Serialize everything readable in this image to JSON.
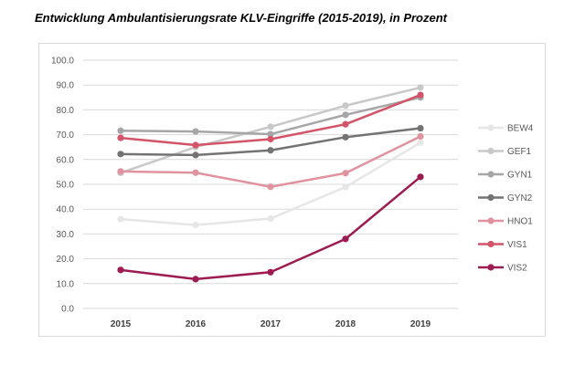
{
  "chart_data": {
    "type": "line",
    "title": "Entwicklung Ambulantisierungsrate KLV-Eingriffe (2015-2019), in Prozent",
    "xlabel": "",
    "ylabel": "",
    "categories": [
      "2015",
      "2016",
      "2017",
      "2018",
      "2019"
    ],
    "ylim": [
      0,
      100
    ],
    "yticks": [
      "0.0",
      "10.0",
      "20.0",
      "30.0",
      "40.0",
      "50.0",
      "60.0",
      "70.0",
      "80.0",
      "90.0",
      "100.0"
    ],
    "grid": true,
    "legend_position": "right",
    "series": [
      {
        "name": "BEW4",
        "color": "#e6e6e6",
        "values": [
          36.0,
          33.6,
          36.2,
          48.9,
          66.8
        ]
      },
      {
        "name": "GEF1",
        "color": "#c8c8c8",
        "values": [
          54.6,
          65.0,
          73.2,
          81.7,
          89.0
        ]
      },
      {
        "name": "GYN1",
        "color": "#a6a6a6",
        "values": [
          71.6,
          71.3,
          70.2,
          78.0,
          85.0
        ]
      },
      {
        "name": "GYN2",
        "color": "#737373",
        "values": [
          62.2,
          61.8,
          63.7,
          69.0,
          72.6
        ]
      },
      {
        "name": "HNO1",
        "color": "#e0939f",
        "values": [
          55.2,
          54.7,
          49.0,
          54.5,
          69.3
        ]
      },
      {
        "name": "VIS1",
        "color": "#d35468",
        "values": [
          68.7,
          65.8,
          68.2,
          74.2,
          86.0
        ]
      },
      {
        "name": "VIS2",
        "color": "#9c1c52",
        "values": [
          15.5,
          11.8,
          14.6,
          28.0,
          53.0
        ]
      }
    ]
  }
}
